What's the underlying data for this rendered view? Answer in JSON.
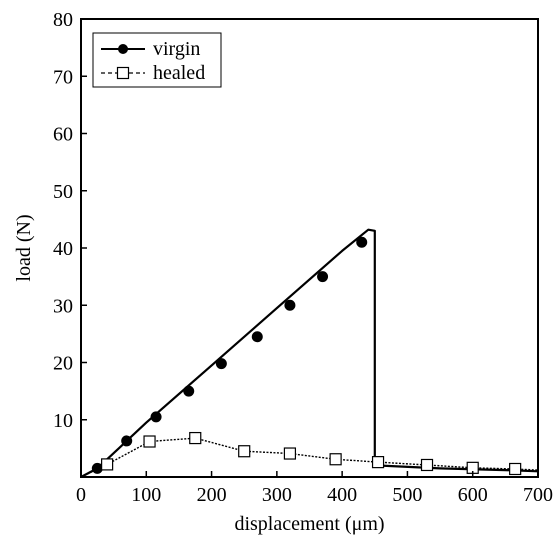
{
  "chart_data": {
    "type": "line",
    "title": "",
    "xlabel": "displacement (μm)",
    "ylabel": "load (N)",
    "xlim": [
      0,
      700
    ],
    "ylim": [
      0,
      80
    ],
    "x_ticks": [
      "0",
      "100",
      "200",
      "300",
      "400",
      "500",
      "600",
      "700"
    ],
    "y_ticks": [
      "10",
      "20",
      "30",
      "40",
      "50",
      "60",
      "70",
      "80"
    ],
    "grid": false,
    "legend_position": "top-left",
    "series": [
      {
        "name": "virgin",
        "color": "#000000",
        "line_style": "solid",
        "marker": "filled-circle",
        "x": [
          0,
          25,
          100,
          200,
          300,
          400,
          440,
          450,
          450,
          460,
          550,
          650,
          700
        ],
        "y": [
          0,
          1.5,
          9.5,
          19.5,
          29.5,
          39.5,
          43.2,
          43,
          2,
          2,
          1.5,
          1.2,
          1
        ]
      },
      {
        "name": "healed",
        "color": "#000000",
        "line_style": "dashed",
        "marker": "open-square",
        "x": [
          0,
          40,
          105,
          175,
          250,
          320,
          390,
          455,
          530,
          600,
          665,
          700
        ],
        "y": [
          0,
          2.2,
          6.2,
          6.8,
          4.5,
          4.1,
          3.1,
          2.6,
          2.1,
          1.6,
          1.4,
          1.2
        ]
      }
    ],
    "marker_points": {
      "virgin": {
        "x": [
          25,
          70,
          115,
          165,
          215,
          270,
          320,
          370,
          430
        ],
        "y": [
          1.5,
          6.3,
          10.5,
          15,
          19.8,
          24.5,
          30,
          35,
          41
        ]
      },
      "healed": {
        "x": [
          40,
          105,
          175,
          250,
          320,
          390,
          455,
          530,
          600,
          665
        ],
        "y": [
          2.2,
          6.2,
          6.8,
          4.5,
          4.1,
          3.1,
          2.6,
          2.1,
          1.6,
          1.4
        ]
      }
    }
  }
}
